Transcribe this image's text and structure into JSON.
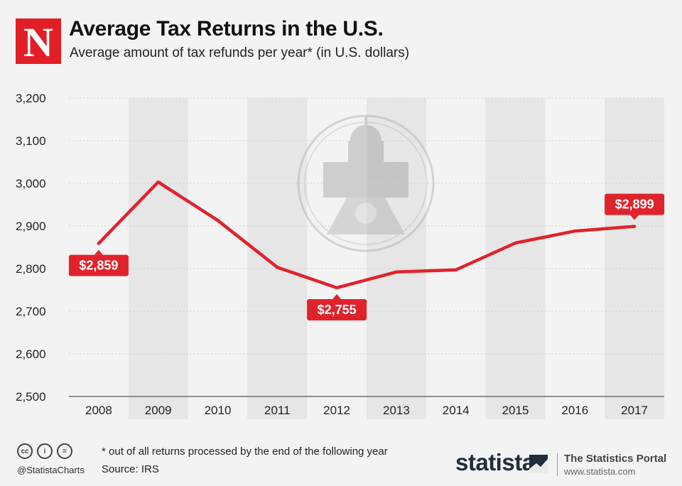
{
  "header": {
    "logo_letter": "N",
    "title": "Average Tax Returns in the U.S.",
    "subtitle": "Average amount of tax refunds per year* (in U.S. dollars)"
  },
  "footer": {
    "cc_labels": [
      "cc",
      "i",
      "="
    ],
    "handle": "@StatistaCharts",
    "note": "* out of all returns processed by the end of the following year",
    "source": "Source: IRS",
    "brand": "statista",
    "portal": "The Statistics Portal",
    "portal_url": "www.statista.com"
  },
  "colors": {
    "line": "#e0232b",
    "label_bg": "#e0232b",
    "band": "#e6e6e6",
    "background": "#f3f3f3",
    "brand_dark": "#1f2d3d"
  },
  "chart_data": {
    "type": "line",
    "title": "Average Tax Returns in the U.S.",
    "subtitle": "Average amount of tax refunds per year* (in U.S. dollars)",
    "xlabel": "",
    "ylabel": "",
    "categories": [
      "2008",
      "2009",
      "2010",
      "2011",
      "2012",
      "2013",
      "2014",
      "2015",
      "2016",
      "2017"
    ],
    "series": [
      {
        "name": "Average tax refund",
        "values": [
          2859,
          3003,
          2913,
          2803,
          2755,
          2792,
          2797,
          2860,
          2888,
          2899
        ]
      }
    ],
    "ylim": [
      2500,
      3200
    ],
    "yticks": [
      2500,
      2600,
      2700,
      2800,
      2900,
      3000,
      3100,
      3200
    ],
    "ytick_labels": [
      "2,500",
      "2,600",
      "2,700",
      "2,800",
      "2,900",
      "3,000",
      "3,100",
      "3,200"
    ],
    "data_labels": [
      {
        "index": 0,
        "text": "$2,859",
        "placement": "below"
      },
      {
        "index": 4,
        "text": "$2,755",
        "placement": "below"
      },
      {
        "index": 9,
        "text": "$2,899",
        "placement": "above"
      }
    ],
    "grid": true,
    "legend": "none"
  }
}
